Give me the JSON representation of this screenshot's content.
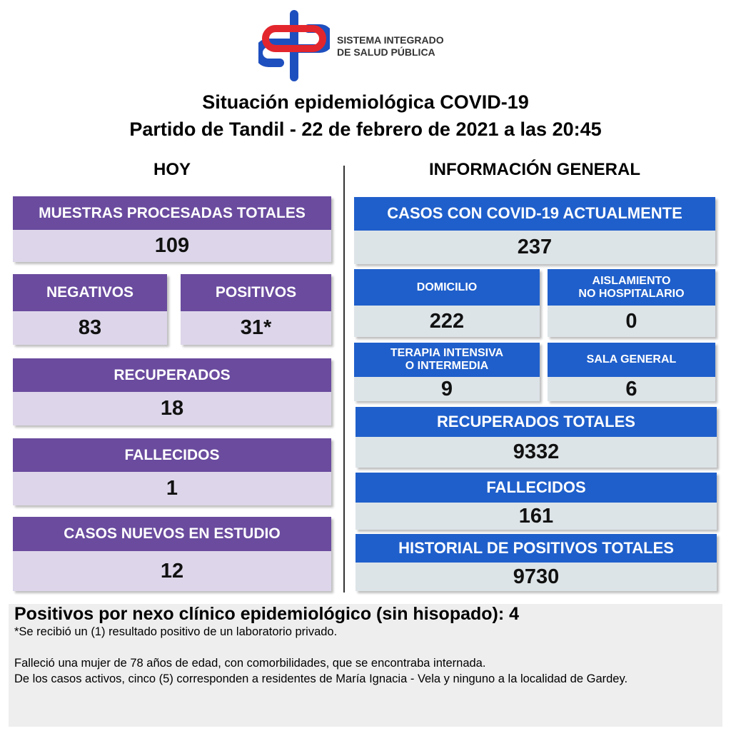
{
  "logo": {
    "line1": "SISTEMA INTEGRADO",
    "line2": "DE SALUD PÚBLICA"
  },
  "header": {
    "title": "Situación epidemiológica COVID-19",
    "subtitle": "Partido de Tandil - 22 de febrero de 2021 a las 20:45"
  },
  "today": {
    "heading": "HOY",
    "cards": [
      {
        "label": "MUESTRAS PROCESADAS TOTALES",
        "value": 109
      },
      {
        "label": "NEGATIVOS",
        "value": 83
      },
      {
        "label": "POSITIVOS",
        "value": "31*"
      },
      {
        "label": "RECUPERADOS",
        "value": 18
      },
      {
        "label": "FALLECIDOS",
        "value": 1
      },
      {
        "label": "CASOS NUEVOS EN ESTUDIO",
        "value": 12
      }
    ]
  },
  "general": {
    "heading": "INFORMACIÓN GENERAL",
    "cards": [
      {
        "label": "CASOS CON COVID-19 ACTUALMENTE",
        "value": 237
      },
      {
        "label": "DOMICILIO",
        "value": 222
      },
      {
        "label": [
          "AISLAMIENTO",
          "NO HOSPITALARIO"
        ],
        "value": 0
      },
      {
        "label": [
          "TERAPIA INTENSIVA",
          "O INTERMEDIA"
        ],
        "value": 9
      },
      {
        "label": "SALA GENERAL",
        "value": 6
      },
      {
        "label": "RECUPERADOS TOTALES",
        "value": 9332
      },
      {
        "label": "FALLECIDOS",
        "value": 161
      },
      {
        "label": "HISTORIAL DE POSITIVOS TOTALES",
        "value": 9730
      }
    ]
  },
  "notes": {
    "heading": "Positivos por nexo clínico epidemiológico (sin hisopado): 4",
    "lines": [
      "*Se recibió un (1) resultado positivo de un laboratorio privado.",
      "Falleció una mujer de 78 años de edad, con comorbilidades, que se encontraba internada.",
      "De los casos activos, cinco (5) corresponden a residentes de María Ignacia - Vela y ninguno a la localidad de Gardey."
    ]
  }
}
